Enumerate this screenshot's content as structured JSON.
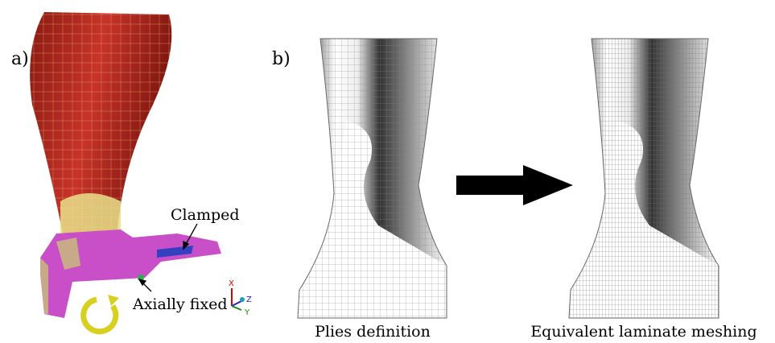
{
  "panel_a": {
    "label": "a)",
    "annotations": {
      "clamped": "Clamped",
      "axially_fixed": "Axially fixed"
    },
    "axes": {
      "x": "X",
      "z": "Z",
      "y": "Y"
    }
  },
  "panel_b": {
    "label": "b)",
    "left_caption": "Plies definition",
    "right_caption": "Equivalent laminate meshing"
  }
}
